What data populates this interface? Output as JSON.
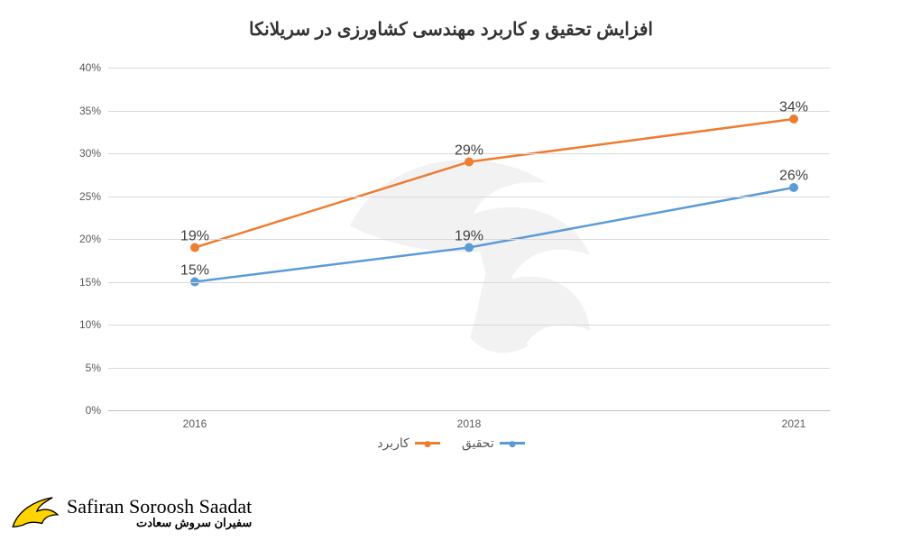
{
  "chart": {
    "type": "line",
    "title": "افزایش تحقیق و کاربرد مهندسی کشاورزی در سریلانکا",
    "title_fontsize": 20,
    "title_color": "#333333",
    "background_color": "#ffffff",
    "grid_color": "#d9d9d9",
    "axis_color": "#bfbfbf",
    "tick_color": "#595959",
    "tick_fontsize": 12,
    "ylim": [
      0,
      40
    ],
    "ytick_step": 5,
    "yticks": [
      "0%",
      "5%",
      "10%",
      "15%",
      "20%",
      "25%",
      "30%",
      "35%",
      "40%"
    ],
    "categories": [
      "2016",
      "2018",
      "2021"
    ],
    "x_positions_pct": [
      12,
      50,
      95
    ],
    "series": [
      {
        "name": "تحقیق",
        "color": "#5b9bd5",
        "values": [
          15,
          19,
          26
        ],
        "labels": [
          "15%",
          "19%",
          "26%"
        ],
        "line_width": 2.5,
        "marker_size": 5
      },
      {
        "name": "کاربرد",
        "color": "#ed7d31",
        "values": [
          19,
          29,
          34
        ],
        "labels": [
          "19%",
          "29%",
          "34%"
        ],
        "line_width": 2.5,
        "marker_size": 5
      }
    ],
    "data_label_fontsize": 16,
    "data_label_color": "#404040",
    "legend_fontsize": 14
  },
  "logo": {
    "english": "Safiran Soroosh Saadat",
    "farsi": "سفیران سروش سعادت",
    "wing_fill": "#ffd400",
    "wing_stroke": "#000000"
  }
}
